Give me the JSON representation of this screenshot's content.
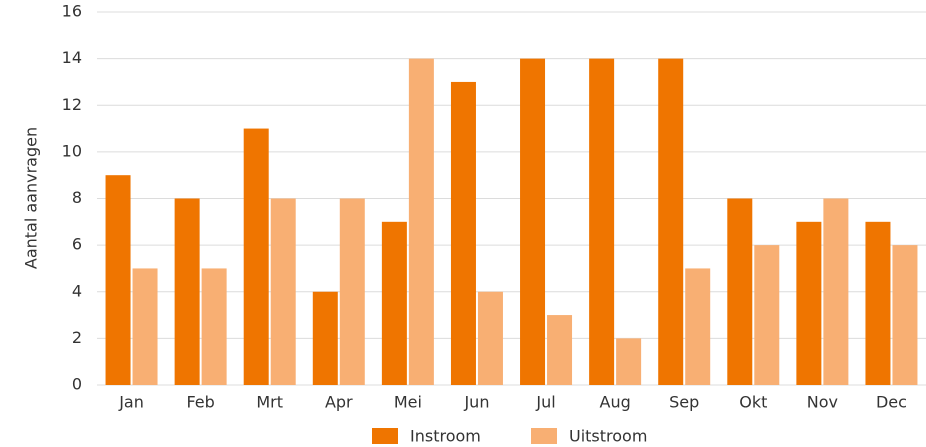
{
  "chart_data": {
    "type": "bar",
    "y_label": "Aantal aanvragen",
    "categories": [
      "Jan",
      "Feb",
      "Mrt",
      "Apr",
      "Mei",
      "Jun",
      "Jul",
      "Aug",
      "Sep",
      "Okt",
      "Nov",
      "Dec"
    ],
    "series": [
      {
        "name": "Instroom",
        "color": "#ef7500",
        "values": [
          9,
          8,
          11,
          4,
          7,
          13,
          14,
          14,
          14,
          8,
          7,
          7
        ]
      },
      {
        "name": "Uitstroom",
        "color": "#f8af73",
        "values": [
          5,
          5,
          8,
          8,
          14,
          4,
          3,
          2,
          5,
          6,
          8,
          6
        ]
      }
    ],
    "ylim": [
      0,
      16
    ],
    "yticks": [
      0,
      2,
      4,
      6,
      8,
      10,
      12,
      14,
      16
    ],
    "grid": true,
    "legend": "bottom"
  }
}
